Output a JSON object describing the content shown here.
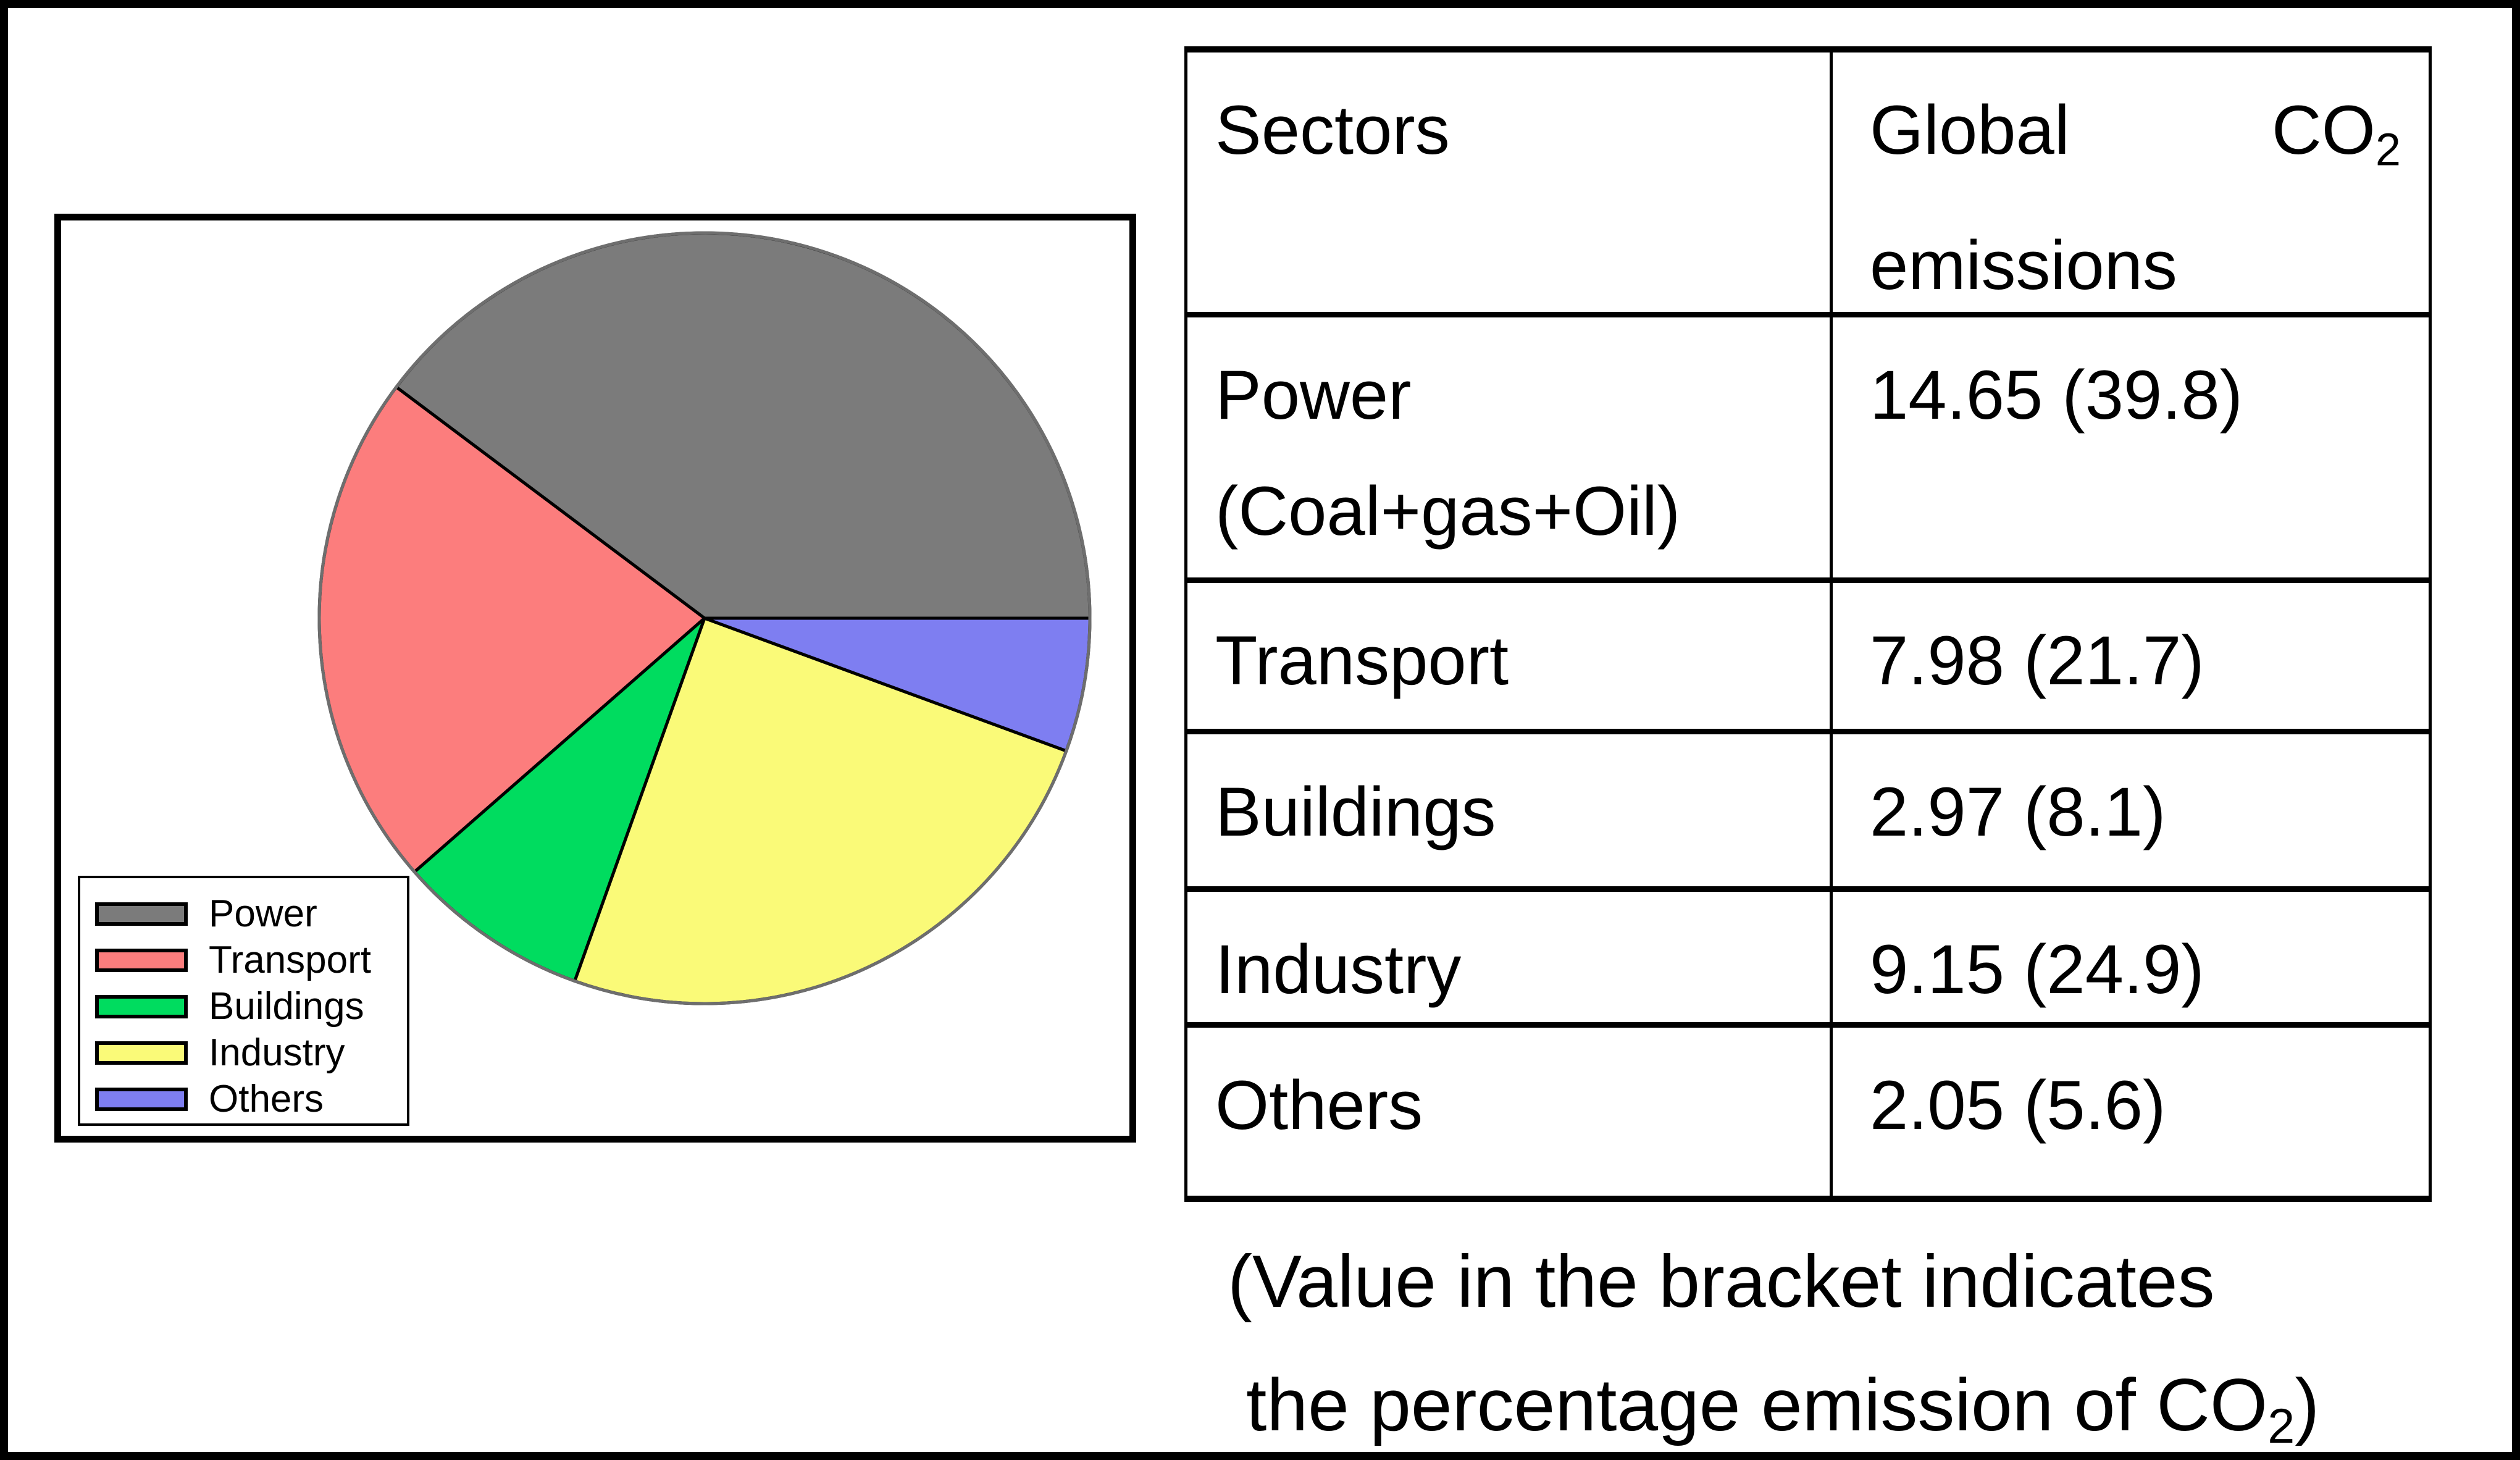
{
  "chart_data": {
    "type": "pie",
    "title": "",
    "categories": [
      "Power",
      "Transport",
      "Buildings",
      "Industry",
      "Others"
    ],
    "values": [
      39.8,
      21.7,
      8.1,
      24.9,
      5.6
    ],
    "values_unit": "percent of global CO2 emissions",
    "absolute_values": [
      14.65,
      7.98,
      2.97,
      9.15,
      2.05
    ],
    "colors": [
      "#7B7B7B",
      "#FC7D7D",
      "#00DC5F",
      "#FAFA78",
      "#7E7EF1"
    ],
    "start_angle_deg": 0,
    "direction": "counterclockwise",
    "legend_position": "bottom-left",
    "outline_color": "#6E6E6E"
  },
  "table": {
    "header": {
      "col1": "Sectors",
      "col2_word1": "Global",
      "col2_word2_base": "CO",
      "col2_word2_sub": "2",
      "col2_line2": "emissions"
    },
    "rows": [
      {
        "sector": "Power",
        "sector_line2": "(Coal+gas+Oil)",
        "value": "14.65 (39.8)"
      },
      {
        "sector": "Transport",
        "value": "7.98 (21.7)"
      },
      {
        "sector": "Buildings",
        "value": "2.97 (8.1)"
      },
      {
        "sector": "Industry",
        "value": "9.15 (24.9)"
      },
      {
        "sector": "Others",
        "value": "2.05 (5.6)"
      }
    ]
  },
  "note": {
    "line1": "(Value in the bracket indicates",
    "line2_base": "the percentage emission of CO",
    "line2_sub": "2",
    "line2_close": ")"
  }
}
